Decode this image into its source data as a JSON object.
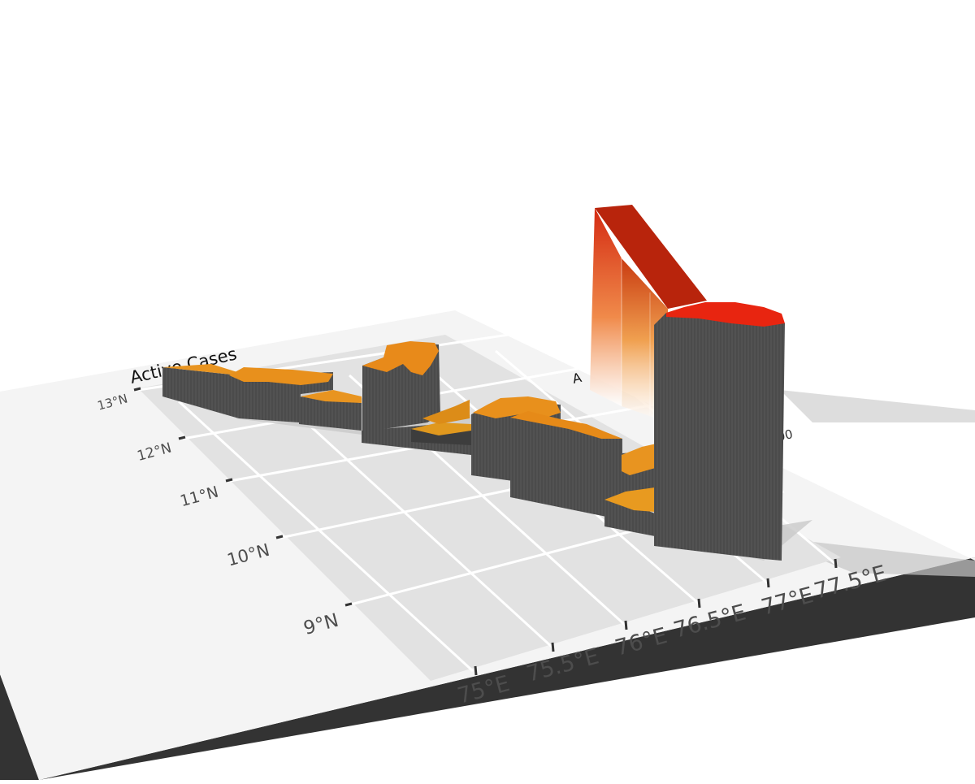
{
  "chart_data": {
    "type": "map-3d",
    "title": "",
    "legend_title": "Active Cases",
    "legend_label_partial": "A",
    "legend_tick_partial": "00",
    "x_axis": {
      "ticks": [
        "75°E",
        "75.5°E",
        "76°E",
        "76.5°E",
        "77°E",
        "77.5°E"
      ],
      "values": [
        75,
        75.5,
        76,
        76.5,
        77,
        77.5
      ]
    },
    "y_axis": {
      "ticks": [
        "9°N",
        "10°N",
        "11°N",
        "12°N",
        "13°N"
      ],
      "values": [
        9,
        10,
        11,
        12,
        13
      ]
    },
    "grid": true,
    "colors": {
      "low": "#f0a020",
      "mid": "#e8851a",
      "high": "#e02010",
      "walls": "#4a4a4a",
      "panel": "#e4e4e4",
      "board": "#f4f4f4",
      "board_edge": "#333333"
    }
  }
}
